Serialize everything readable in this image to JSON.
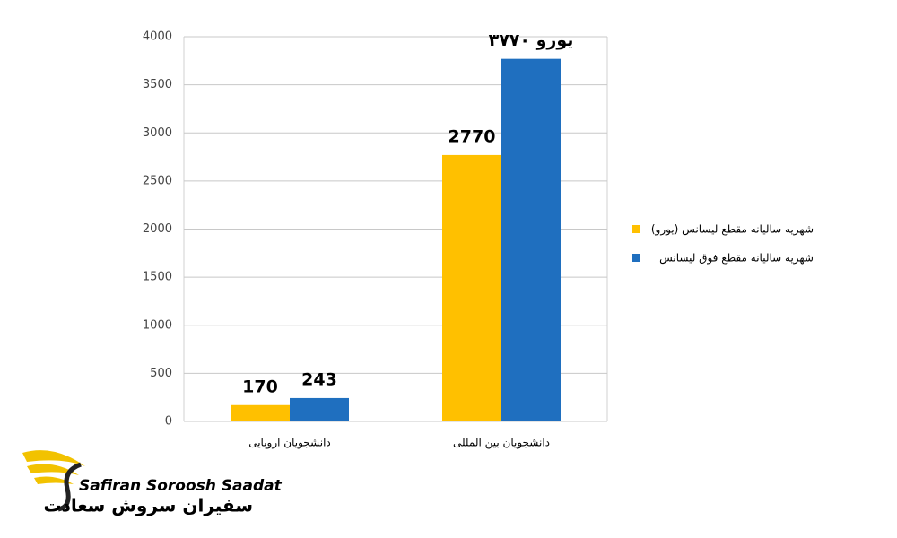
{
  "chart_data": {
    "type": "bar",
    "categories": [
      "دانشجویان اروپایی",
      "دانشجویان بین المللی"
    ],
    "series": [
      {
        "name": "شهریه سالیانه مقطع لیسانس (یورو)",
        "color": "#ffc000",
        "values": [
          170,
          2770
        ]
      },
      {
        "name": "شهریه سالیانه مقطع فوق لیسانس",
        "color": "#1f6fbf",
        "values": [
          243,
          3770
        ],
        "value_labels": [
          "243",
          "یورو ۳۷۷۰"
        ]
      }
    ],
    "ylim": [
      0,
      4000
    ],
    "yticks": [
      0,
      500,
      1000,
      1500,
      2000,
      2500,
      3000,
      3500,
      4000
    ],
    "grid": true,
    "legend": "right"
  },
  "logo": {
    "latin": "Safiran Soroosh Saadat",
    "persian": "سفیران سروش سعادت"
  }
}
